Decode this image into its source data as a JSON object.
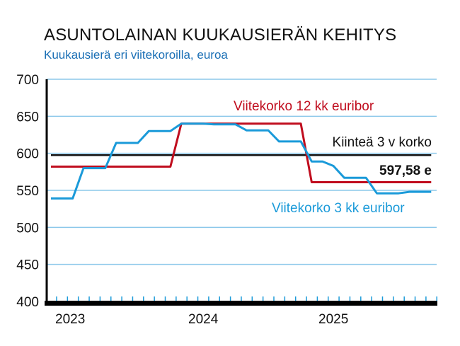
{
  "header": {
    "title": "ASUNTOLAINAN KUUKAUSIERÄN KEHITYS",
    "subtitle": "Kuukausierä eri viitekoroilla, euroa"
  },
  "colors": {
    "blue_series": "#1a9ad9",
    "red_series": "#c00d1e",
    "fixed_series": "#111111",
    "grid": "#8cc8ea",
    "subtitle": "#1a6fb5"
  },
  "annotations": {
    "red_label": "Viitekorko 12 kk euribor",
    "fixed_label": "Kiinteä 3 v korko",
    "fixed_value": "597,58 e",
    "blue_label": "Viitekorko 3 kk euribor"
  },
  "chart_data": {
    "type": "line",
    "title": "ASUNTOLAINAN KUUKAUSIERÄN KEHITYS",
    "subtitle": "Kuukausierä eri viitekoroilla, euroa",
    "xlabel": "",
    "ylabel": "",
    "ylim": [
      400,
      700
    ],
    "yticks": [
      700,
      650,
      600,
      550,
      500,
      450,
      400
    ],
    "xtick_labels": [
      "2023",
      "2024",
      "2025"
    ],
    "grid": true,
    "x": [
      "2023-01",
      "2023-02",
      "2023-03",
      "2023-04",
      "2023-05",
      "2023-06",
      "2023-07",
      "2023-08",
      "2023-09",
      "2023-10",
      "2023-11",
      "2023-12",
      "2024-01",
      "2024-02",
      "2024-03",
      "2024-04",
      "2024-05",
      "2024-06",
      "2024-07",
      "2024-08",
      "2024-09",
      "2024-10",
      "2024-11",
      "2024-12",
      "2025-01",
      "2025-02",
      "2025-03",
      "2025-04",
      "2025-05",
      "2025-06",
      "2025-07",
      "2025-08",
      "2025-09",
      "2025-10",
      "2025-11",
      "2025-12"
    ],
    "series": [
      {
        "name": "Viitekorko 3 kk euribor",
        "color": "#1a9ad9",
        "values": [
          539,
          539,
          539,
          580,
          580,
          580,
          614,
          614,
          614,
          630,
          630,
          630,
          640,
          640,
          640,
          639,
          639,
          639,
          631,
          631,
          631,
          616,
          616,
          616,
          589,
          589,
          583,
          567,
          567,
          567,
          546,
          546,
          546,
          548,
          548,
          548
        ]
      },
      {
        "name": "Viitekorko 12 kk euribor",
        "color": "#c00d1e",
        "values": [
          582,
          582,
          582,
          582,
          582,
          582,
          582,
          582,
          582,
          582,
          582,
          582,
          640,
          640,
          640,
          640,
          640,
          640,
          640,
          640,
          640,
          640,
          640,
          640,
          561,
          561,
          561,
          561,
          561,
          561,
          561,
          561,
          561,
          561,
          561,
          561
        ]
      },
      {
        "name": "Kiinteä 3 v korko",
        "color": "#111111",
        "values": [
          597.58,
          597.58,
          597.58,
          597.58,
          597.58,
          597.58,
          597.58,
          597.58,
          597.58,
          597.58,
          597.58,
          597.58,
          597.58,
          597.58,
          597.58,
          597.58,
          597.58,
          597.58,
          597.58,
          597.58,
          597.58,
          597.58,
          597.58,
          597.58,
          597.58,
          597.58,
          597.58,
          597.58,
          597.58,
          597.58,
          597.58,
          597.58,
          597.58,
          597.58,
          597.58,
          597.58
        ]
      }
    ]
  }
}
